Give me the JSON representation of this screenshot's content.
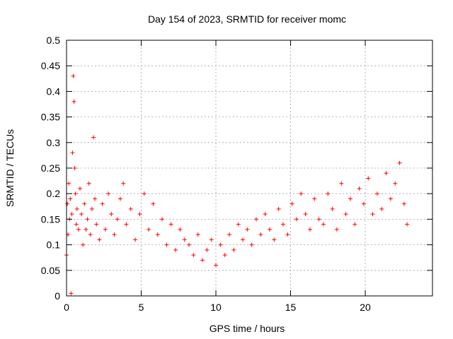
{
  "chart_data": {
    "type": "scatter",
    "title": "Day 154 of 2023, SRMTID for receiver momc",
    "xlabel": "GPS time / hours",
    "ylabel": "SRMTID / TECUs",
    "xlim": [
      0,
      24.5
    ],
    "ylim": [
      0,
      0.5
    ],
    "xticks": [
      0,
      5,
      10,
      15,
      20
    ],
    "yticks": [
      0,
      0.05,
      0.1,
      0.15,
      0.2,
      0.25,
      0.3,
      0.35,
      0.4,
      0.45,
      0.5
    ],
    "grid": true,
    "marker": "+",
    "color": "#ff0000",
    "series": [
      {
        "x": [
          0.0,
          0.05,
          0.1,
          0.15,
          0.2,
          0.25,
          0.3,
          0.35,
          0.4,
          0.45,
          0.5,
          0.55,
          0.6,
          0.65,
          0.7,
          0.8,
          0.9,
          1.0,
          1.1,
          1.2,
          1.3,
          1.4,
          1.5,
          1.6,
          1.7,
          1.8,
          1.9,
          2.0,
          2.2,
          2.4,
          2.6,
          2.8,
          3.0,
          3.2,
          3.4,
          3.6,
          3.8,
          4.0,
          4.3,
          4.6,
          4.9,
          5.2,
          5.5,
          5.8,
          6.1,
          6.4,
          6.7,
          7.0,
          7.3,
          7.6,
          7.9,
          8.2,
          8.5,
          8.8,
          9.1,
          9.4,
          9.7,
          10.0,
          10.3,
          10.6,
          10.9,
          11.2,
          11.5,
          11.8,
          12.1,
          12.4,
          12.7,
          13.0,
          13.3,
          13.6,
          13.9,
          14.2,
          14.5,
          14.8,
          15.1,
          15.4,
          15.7,
          16.0,
          16.3,
          16.6,
          16.9,
          17.2,
          17.5,
          17.8,
          18.1,
          18.4,
          18.7,
          19.0,
          19.3,
          19.6,
          19.9,
          20.2,
          20.5,
          20.8,
          21.1,
          21.4,
          21.7,
          22.0,
          22.3,
          22.6,
          22.8
        ],
        "y": [
          0.08,
          0.18,
          0.12,
          0.22,
          0.15,
          0.19,
          0.005,
          0.16,
          0.28,
          0.43,
          0.38,
          0.25,
          0.2,
          0.14,
          0.17,
          0.13,
          0.21,
          0.16,
          0.1,
          0.18,
          0.13,
          0.15,
          0.22,
          0.12,
          0.17,
          0.31,
          0.19,
          0.14,
          0.11,
          0.18,
          0.13,
          0.2,
          0.16,
          0.12,
          0.15,
          0.19,
          0.22,
          0.14,
          0.17,
          0.11,
          0.16,
          0.2,
          0.13,
          0.18,
          0.12,
          0.15,
          0.1,
          0.14,
          0.09,
          0.13,
          0.11,
          0.1,
          0.08,
          0.12,
          0.07,
          0.09,
          0.11,
          0.06,
          0.1,
          0.08,
          0.12,
          0.09,
          0.14,
          0.11,
          0.13,
          0.1,
          0.15,
          0.12,
          0.16,
          0.13,
          0.11,
          0.17,
          0.14,
          0.12,
          0.18,
          0.15,
          0.2,
          0.16,
          0.13,
          0.19,
          0.15,
          0.14,
          0.2,
          0.17,
          0.13,
          0.22,
          0.16,
          0.19,
          0.14,
          0.21,
          0.18,
          0.23,
          0.16,
          0.2,
          0.17,
          0.24,
          0.19,
          0.22,
          0.26,
          0.18,
          0.14
        ]
      }
    ]
  }
}
